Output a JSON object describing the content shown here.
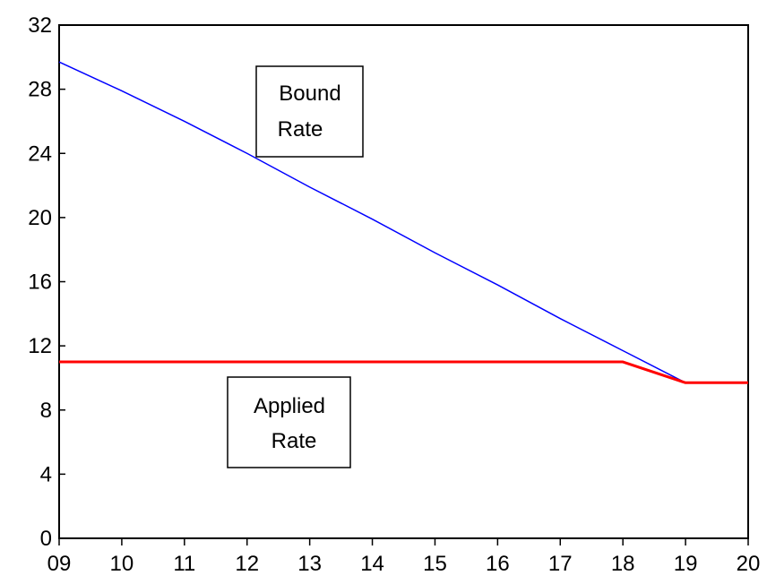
{
  "chart_data": {
    "type": "line",
    "x": [
      "09",
      "10",
      "11",
      "12",
      "13",
      "14",
      "15",
      "16",
      "17",
      "18",
      "19",
      "20"
    ],
    "xlim": [
      0,
      11
    ],
    "ylim": [
      0,
      32
    ],
    "yticks": [
      "0",
      "4",
      "8",
      "12",
      "16",
      "20",
      "24",
      "28",
      "32"
    ],
    "grid": false,
    "series": [
      {
        "name": "Bound Rate",
        "color": "#0000ff",
        "values": [
          29.7,
          27.9,
          26.0,
          24.0,
          21.9,
          19.9,
          17.8,
          15.8,
          13.7,
          11.7,
          9.7,
          null
        ]
      },
      {
        "name": "Applied Rate",
        "color": "#ff0000",
        "values": [
          11.0,
          11.0,
          11.0,
          11.0,
          11.0,
          11.0,
          11.0,
          11.0,
          11.0,
          11.0,
          9.7,
          9.7
        ]
      }
    ],
    "annotations": [
      {
        "lines": [
          "Bound",
          "Rate"
        ]
      },
      {
        "lines": [
          "Applied",
          "Rate"
        ]
      }
    ]
  }
}
